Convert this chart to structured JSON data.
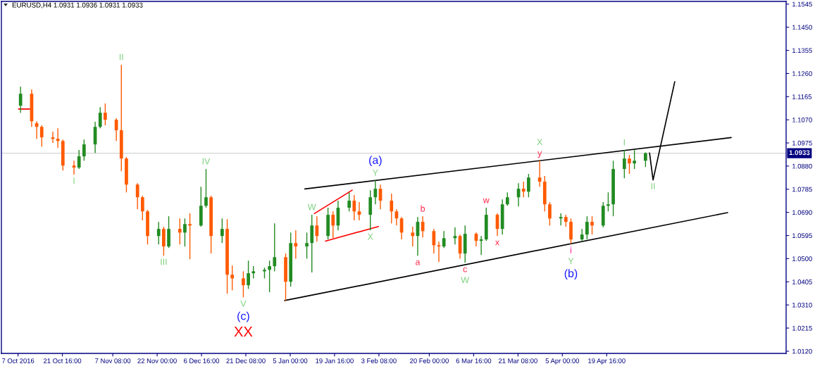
{
  "chart_data": {
    "type": "candlestick",
    "title": "EURUSD,H4 1.0931 1.0936 1.0931 1.0933",
    "x": [
      "2016-10-07T20:00",
      "2016-10-11T12:00",
      "2016-10-13T04:00",
      "2016-10-14T20:00",
      "2016-10-18T12:00",
      "2016-10-20T04:00",
      "2016-10-21T20:00",
      "2016-10-25T12:00",
      "2016-10-27T04:00",
      "2016-10-28T20:00",
      "2016-11-01T12:00",
      "2016-11-03T04:00",
      "2016-11-04T20:00",
      "2016-11-08T12:00",
      "2016-11-10T04:00",
      "2016-11-11T20:00",
      "2016-11-15T12:00",
      "2016-11-17T04:00",
      "2016-11-18T20:00",
      "2016-11-22T12:00",
      "2016-11-24T04:00",
      "2016-11-25T20:00",
      "2016-11-29T12:00",
      "2016-12-01T04:00",
      "2016-12-02T20:00",
      "2016-12-06T12:00",
      "2016-12-08T04:00",
      "2016-12-09T20:00",
      "2016-12-13T12:00",
      "2016-12-15T04:00",
      "2016-12-16T20:00",
      "2016-12-20T12:00",
      "2016-12-22T04:00",
      "2016-12-23T20:00",
      "2016-12-27T12:00",
      "2016-12-29T04:00",
      "2016-12-30T20:00",
      "2017-01-03T12:00",
      "2017-01-05T04:00",
      "2017-01-06T20:00",
      "2017-01-10T12:00",
      "2017-01-12T04:00",
      "2017-01-13T20:00",
      "2017-01-17T12:00",
      "2017-01-19T04:00",
      "2017-01-20T20:00",
      "2017-01-24T12:00",
      "2017-01-26T04:00",
      "2017-01-27T20:00",
      "2017-01-31T12:00",
      "2017-02-02T04:00",
      "2017-02-03T20:00",
      "2017-02-07T12:00",
      "2017-02-09T04:00",
      "2017-02-10T20:00",
      "2017-02-14T12:00",
      "2017-02-16T04:00",
      "2017-02-17T20:00",
      "2017-02-21T12:00",
      "2017-02-23T04:00",
      "2017-02-24T20:00",
      "2017-02-28T12:00",
      "2017-03-02T04:00",
      "2017-03-03T20:00",
      "2017-03-07T12:00",
      "2017-03-09T04:00",
      "2017-03-10T20:00",
      "2017-03-14T12:00",
      "2017-03-16T04:00",
      "2017-03-17T20:00",
      "2017-03-21T12:00",
      "2017-03-23T04:00",
      "2017-03-24T20:00",
      "2017-03-28T12:00",
      "2017-03-30T04:00",
      "2017-03-31T20:00",
      "2017-04-04T12:00",
      "2017-04-06T04:00",
      "2017-04-07T20:00",
      "2017-04-11T12:00",
      "2017-04-13T04:00",
      "2017-04-14T20:00",
      "2017-04-18T12:00",
      "2017-04-20T04:00",
      "2017-04-21T20:00",
      "2017-04-25T12:00",
      "2017-04-27T04:00",
      "2017-04-28T20:00",
      "2017-05-02T12:00"
    ],
    "ohlc": [
      [
        1.1128,
        1.1206,
        1.1099,
        1.1177
      ],
      [
        1.1177,
        1.1195,
        1.1041,
        1.1064
      ],
      [
        1.1056,
        1.1064,
        1.0992,
        1.1041
      ],
      [
        1.1041,
        1.1047,
        1.096,
        1.0998
      ],
      [
        1.0998,
        1.1021,
        1.0975,
        1.0992
      ],
      [
        1.0992,
        1.1035,
        1.0955,
        1.0983
      ],
      [
        1.0983,
        1.0989,
        1.0862,
        1.0882
      ],
      [
        1.0882,
        1.0902,
        1.0845,
        1.0874
      ],
      [
        1.0874,
        1.0946,
        1.0868,
        1.092
      ],
      [
        1.092,
        1.0989,
        1.0902,
        1.0969
      ],
      [
        1.0969,
        1.1062,
        1.0934,
        1.1041
      ],
      [
        1.1041,
        1.1122,
        1.1035,
        1.1099
      ],
      [
        1.1099,
        1.1137,
        1.1047,
        1.107
      ],
      [
        1.107,
        1.1076,
        1.0983,
        1.1027
      ],
      [
        1.1027,
        1.1296,
        1.0859,
        1.0911
      ],
      [
        1.0911,
        1.0917,
        1.0772,
        1.0804
      ],
      [
        1.0804,
        1.081,
        1.0703,
        1.0752
      ],
      [
        1.0752,
        1.0758,
        1.0657,
        1.0694
      ],
      [
        1.0694,
        1.07,
        1.0558,
        1.0593
      ],
      [
        1.0593,
        1.0651,
        1.0558,
        1.0622
      ],
      [
        1.0622,
        1.0631,
        1.0512,
        1.055
      ],
      [
        1.055,
        1.0674,
        1.0544,
        1.0622
      ],
      [
        1.0622,
        1.0665,
        1.0558,
        1.0607
      ],
      [
        1.0607,
        1.0665,
        1.055,
        1.0642
      ],
      [
        1.0642,
        1.0686,
        1.0498,
        1.0636
      ],
      [
        1.0636,
        1.0795,
        1.0631,
        1.0717
      ],
      [
        1.0717,
        1.0868,
        1.0709,
        1.0752
      ],
      [
        1.0752,
        1.0758,
        1.0521,
        1.0593
      ],
      [
        1.0593,
        1.0665,
        1.0564,
        1.0622
      ],
      [
        1.0622,
        1.0662,
        1.0356,
        1.0434
      ],
      [
        1.0434,
        1.0472,
        1.037,
        1.0419
      ],
      [
        1.0419,
        1.0448,
        1.0341,
        1.0391
      ],
      [
        1.0391,
        1.0492,
        1.0376,
        1.044
      ],
      [
        1.044,
        1.0469,
        1.0419,
        1.0448
      ],
      [
        1.0448,
        1.0463,
        1.0419,
        1.0454
      ],
      [
        1.0454,
        1.0492,
        1.0362,
        1.0469
      ],
      [
        1.0469,
        1.0645,
        1.0448,
        1.0506
      ],
      [
        1.0506,
        1.0521,
        1.0327,
        1.0405
      ],
      [
        1.0405,
        1.0607,
        1.0385,
        1.0564
      ],
      [
        1.0564,
        1.0616,
        1.05,
        1.055
      ],
      [
        1.055,
        1.0607,
        1.05,
        1.0564
      ],
      [
        1.0564,
        1.068,
        1.0443,
        1.0636
      ],
      [
        1.0636,
        1.0674,
        1.057,
        1.0593
      ],
      [
        1.0593,
        1.0709,
        1.0579,
        1.068
      ],
      [
        1.068,
        1.0694,
        1.0584,
        1.0636
      ],
      [
        1.0636,
        1.0738,
        1.0616,
        1.0709
      ],
      [
        1.0709,
        1.0772,
        1.0694,
        1.0738
      ],
      [
        1.0738,
        1.0761,
        1.0657,
        1.0694
      ],
      [
        1.0694,
        1.0732,
        1.0657,
        1.068
      ],
      [
        1.068,
        1.0781,
        1.0616,
        1.0752
      ],
      [
        1.0752,
        1.0821,
        1.0723,
        1.0787
      ],
      [
        1.0787,
        1.0804,
        1.0703,
        1.0738
      ],
      [
        1.0738,
        1.0767,
        1.0645,
        1.0694
      ],
      [
        1.0694,
        1.0703,
        1.0636,
        1.0665
      ],
      [
        1.0665,
        1.0671,
        1.0579,
        1.0607
      ],
      [
        1.0607,
        1.0631,
        1.055,
        1.0593
      ],
      [
        1.0593,
        1.0671,
        1.0512,
        1.0651
      ],
      [
        1.0651,
        1.0674,
        1.0587,
        1.0613
      ],
      [
        1.0613,
        1.0622,
        1.0521,
        1.0555
      ],
      [
        1.0555,
        1.057,
        1.0486,
        1.055
      ],
      [
        1.055,
        1.0613,
        1.0544,
        1.0584
      ],
      [
        1.0584,
        1.0628,
        1.0558,
        1.0593
      ],
      [
        1.0593,
        1.0599,
        1.05,
        1.0521
      ],
      [
        1.0521,
        1.0636,
        1.0483,
        1.0602
      ],
      [
        1.0602,
        1.0607,
        1.055,
        1.0573
      ],
      [
        1.0573,
        1.0593,
        1.0515,
        1.0579
      ],
      [
        1.0579,
        1.0709,
        1.0573,
        1.068
      ],
      [
        1.068,
        1.0686,
        1.0593,
        1.0622
      ],
      [
        1.0622,
        1.0743,
        1.0599,
        1.0723
      ],
      [
        1.0723,
        1.0772,
        1.0717,
        1.0752
      ],
      [
        1.0752,
        1.081,
        1.0714,
        1.0787
      ],
      [
        1.0787,
        1.0816,
        1.0752,
        1.0775
      ],
      [
        1.0775,
        1.0848,
        1.0752,
        1.0833
      ],
      [
        1.0833,
        1.0902,
        1.0795,
        1.0816
      ],
      [
        1.0816,
        1.0839,
        1.0694,
        1.0723
      ],
      [
        1.0723,
        1.0732,
        1.0636,
        1.0665
      ],
      [
        1.0665,
        1.0686,
        1.0636,
        1.0671
      ],
      [
        1.0671,
        1.068,
        1.0631,
        1.0651
      ],
      [
        1.0651,
        1.0665,
        1.0561,
        1.0579
      ],
      [
        1.0579,
        1.0622,
        1.057,
        1.0599
      ],
      [
        1.0599,
        1.0674,
        1.0579,
        1.0651
      ],
      [
        1.0651,
        1.0674,
        1.0599,
        1.0636
      ],
      [
        1.0636,
        1.0732,
        1.0628,
        1.0717
      ],
      [
        1.0717,
        1.0772,
        1.0694,
        1.0723
      ],
      [
        1.0723,
        1.0902,
        1.0674,
        1.0868
      ],
      [
        1.0868,
        1.0946,
        1.083,
        1.0911
      ],
      [
        1.0911,
        1.0926,
        1.0848,
        1.0891
      ],
      [
        1.0891,
        1.0946,
        1.0868,
        1.0902
      ],
      [
        1.0902,
        1.0936,
        1.0876,
        1.0933
      ]
    ],
    "colors": [
      "#228b22",
      "#ff5a00",
      "#ff5a00",
      "#ff5a00",
      "#ff5a00",
      "#ff5a00",
      "#ff5a00",
      "#ff5a00",
      "#228b22",
      "#228b22",
      "#228b22",
      "#228b22",
      "#ff5a00",
      "#ff5a00",
      "#ff5a00",
      "#ff5a00",
      "#ff5a00",
      "#ff5a00",
      "#ff5a00",
      "#228b22",
      "#ff5a00",
      "#228b22",
      "#ff5a00",
      "#228b22",
      "#ff5a00",
      "#228b22",
      "#228b22",
      "#ff5a00",
      "#228b22",
      "#ff5a00",
      "#ff5a00",
      "#ff5a00",
      "#228b22",
      "#228b22",
      "#228b22",
      "#228b22",
      "#228b22",
      "#ff5a00",
      "#228b22",
      "#ff5a00",
      "#228b22",
      "#228b22",
      "#ff5a00",
      "#228b22",
      "#ff5a00",
      "#228b22",
      "#228b22",
      "#ff5a00",
      "#ff5a00",
      "#228b22",
      "#228b22",
      "#ff5a00",
      "#ff5a00",
      "#ff5a00",
      "#ff5a00",
      "#ff5a00",
      "#228b22",
      "#ff5a00",
      "#ff5a00",
      "#ff5a00",
      "#228b22",
      "#228b22",
      "#ff5a00",
      "#228b22",
      "#ff5a00",
      "#228b22",
      "#228b22",
      "#ff5a00",
      "#228b22",
      "#228b22",
      "#228b22",
      "#ff5a00",
      "#228b22",
      "#ff5a00",
      "#ff5a00",
      "#ff5a00",
      "#228b22",
      "#ff5a00",
      "#ff5a00",
      "#228b22",
      "#228b22",
      "#ff5a00",
      "#228b22",
      "#228b22",
      "#228b22",
      "#228b22",
      "#ff5a00",
      "#228b22",
      "#228b22"
    ],
    "series": [
      {
        "type": "line",
        "x": [
          "2017-01-09T20:00",
          "2017-05-30T20:00"
        ],
        "values": [
          1.0786,
          1.0997
        ],
        "color": "#000000"
      },
      {
        "type": "line",
        "x": [
          "2017-01-03T04:00",
          "2017-05-29T16:00"
        ],
        "values": [
          1.0328,
          1.0689
        ],
        "color": "#000000"
      },
      {
        "type": "line",
        "x": [
          "2017-01-13T00:00",
          "2017-01-25T12:00"
        ],
        "values": [
          1.0685,
          1.0781
        ],
        "color": "#ff0000"
      },
      {
        "type": "line",
        "x": [
          "2017-01-16T16:00",
          "2017-02-03T04:00"
        ],
        "values": [
          1.0572,
          1.0632
        ],
        "color": "#ff0000"
      },
      {
        "type": "line",
        "x": [
          "2017-05-03T20:00",
          "2017-05-05T00:00",
          "2017-05-12T04:00"
        ],
        "values": [
          1.0934,
          1.0823,
          1.1226
        ],
        "color": "#000000"
      },
      {
        "type": "line",
        "x": [
          "2016-10-07T04:00",
          "2016-10-11T12:00"
        ],
        "values": [
          1.1114,
          1.1114
        ],
        "color": "#ff0000"
      }
    ],
    "ref_lines": [
      {
        "axis": "y",
        "value": 1.0933,
        "label": "1.0933",
        "color": "#d3d3d3"
      }
    ],
    "annotations": [
      {
        "text": "I",
        "x": "2016-10-25T12:00",
        "y": 1.0845
      },
      {
        "text": "II",
        "x": "2016-11-10T04:00",
        "y": 1.1296
      },
      {
        "text": "III",
        "x": "2016-11-24T04:00",
        "y": 1.0512
      },
      {
        "text": "IV",
        "x": "2016-12-08T04:00",
        "y": 1.0868
      },
      {
        "text": "V",
        "x": "2016-12-20T12:00",
        "y": 1.0341
      },
      {
        "text": "(c)",
        "x": "2016-12-20T12:00",
        "y": 1.0341
      },
      {
        "text": "XX",
        "x": "2016-12-20T12:00",
        "y": 1.0341
      },
      {
        "text": "W",
        "x": "2017-01-12T04:00",
        "y": 1.068
      },
      {
        "text": "X",
        "x": "2017-01-31T12:00",
        "y": 1.0616
      },
      {
        "text": "Y",
        "x": "2017-02-02T04:00",
        "y": 1.0821
      },
      {
        "text": "(a)",
        "x": "2017-02-02T04:00",
        "y": 1.0821
      },
      {
        "text": "b",
        "x": "2017-02-17T20:00",
        "y": 1.0674
      },
      {
        "text": "a",
        "x": "2017-02-16T04:00",
        "y": 1.0512
      },
      {
        "text": "c",
        "x": "2017-03-03T20:00",
        "y": 1.0483
      },
      {
        "text": "W",
        "x": "2017-03-03T20:00",
        "y": 1.0483
      },
      {
        "text": "w",
        "x": "2017-03-10T20:00",
        "y": 1.0709
      },
      {
        "text": "x",
        "x": "2017-03-14T12:00",
        "y": 1.0593
      },
      {
        "text": "y",
        "x": "2017-03-28T12:00",
        "y": 1.0902
      },
      {
        "text": "X",
        "x": "2017-03-28T12:00",
        "y": 1.0902
      },
      {
        "text": "i",
        "x": "2017-04-07T20:00",
        "y": 1.0561
      },
      {
        "text": "Y",
        "x": "2017-04-07T20:00",
        "y": 1.0561
      },
      {
        "text": "(b)",
        "x": "2017-04-07T20:00",
        "y": 1.0561
      },
      {
        "text": "I",
        "x": "2017-04-25T12:00",
        "y": 1.0946
      },
      {
        "text": "II",
        "x": "2017-05-05T00:00",
        "y": 1.0823
      }
    ],
    "xlim": [
      "2016-10-01T12:00",
      "2017-06-18T00:00"
    ],
    "xticks": [
      {
        "value": "2016-10-07T00:00",
        "label": "7 Oct 2016"
      },
      {
        "value": "2016-10-21T16:00",
        "label": "21 Oct 16:00"
      },
      {
        "value": "2016-11-07T08:00",
        "label": "7 Nov 08:00"
      },
      {
        "value": "2016-11-22T00:00",
        "label": "22 Nov 00:00"
      },
      {
        "value": "2016-12-06T16:00",
        "label": "6 Dec 16:00"
      },
      {
        "value": "2016-12-21T08:00",
        "label": "21 Dec 08:00"
      },
      {
        "value": "2017-01-05T00:00",
        "label": "5 Jan 00:00"
      },
      {
        "value": "2017-01-19T16:00",
        "label": "19 Jan 16:00"
      },
      {
        "value": "2017-02-03T08:00",
        "label": "3 Feb 08:00"
      },
      {
        "value": "2017-02-20T00:00",
        "label": "20 Feb 00:00"
      },
      {
        "value": "2017-03-06T16:00",
        "label": "6 Mar 16:00"
      },
      {
        "value": "2017-03-21T08:00",
        "label": "21 Mar 08:00"
      },
      {
        "value": "2017-04-05T00:00",
        "label": "5 Apr 00:00"
      },
      {
        "value": "2017-04-19T16:00",
        "label": "19 Apr 16:00"
      }
    ],
    "ylim": [
      1.0111,
      1.1556
    ],
    "yticks": [
      {
        "value": 1.012,
        "label": "1.0120"
      },
      1.0215,
      {
        "value": 1.031,
        "label": "1.0310"
      },
      1.0405,
      {
        "value": 1.05,
        "label": "1.0500"
      },
      1.0595,
      {
        "value": 1.069,
        "label": "1.0690"
      },
      1.0785,
      {
        "value": 1.088,
        "label": "1.0880"
      },
      1.0975,
      {
        "value": 1.107,
        "label": "1.1070"
      },
      1.1165,
      {
        "value": 1.126,
        "label": "1.1260"
      },
      1.1355,
      {
        "value": 1.145,
        "label": "1.1450"
      },
      1.1545
    ]
  }
}
